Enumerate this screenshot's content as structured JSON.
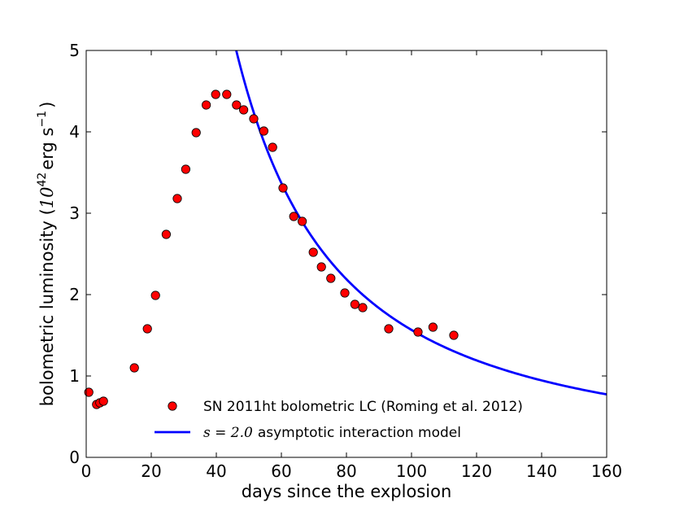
{
  "chart_data": {
    "type": "scatter",
    "xlabel": "days since the explosion",
    "ylabel": {
      "prefix": "bolometric luminosity (",
      "base": "10",
      "exp": "42",
      "unit1": "erg s",
      "unit_exp": "−1",
      "suffix": ")"
    },
    "xlim": [
      0,
      160
    ],
    "ylim": [
      0,
      5
    ],
    "xticks": [
      0,
      20,
      40,
      60,
      80,
      100,
      120,
      140,
      160
    ],
    "yticks": [
      0,
      1,
      2,
      3,
      4,
      5
    ],
    "series": [
      {
        "name": "SN 2011ht bolometric LC (Roming et al. 2012)",
        "kind": "scatter",
        "color": "#ff0000",
        "edge_color": "#000000",
        "points": [
          [
            0.8,
            0.8
          ],
          [
            3.2,
            0.65
          ],
          [
            4.2,
            0.67
          ],
          [
            5.3,
            0.69
          ],
          [
            14.8,
            1.1
          ],
          [
            18.8,
            1.58
          ],
          [
            21.3,
            1.99
          ],
          [
            24.6,
            2.74
          ],
          [
            28.0,
            3.18
          ],
          [
            30.6,
            3.54
          ],
          [
            33.8,
            3.99
          ],
          [
            36.9,
            4.33
          ],
          [
            39.8,
            4.46
          ],
          [
            43.2,
            4.46
          ],
          [
            46.2,
            4.33
          ],
          [
            48.4,
            4.27
          ],
          [
            51.5,
            4.16
          ],
          [
            54.6,
            4.01
          ],
          [
            57.3,
            3.81
          ],
          [
            60.5,
            3.31
          ],
          [
            63.8,
            2.96
          ],
          [
            66.4,
            2.9
          ],
          [
            69.8,
            2.52
          ],
          [
            72.3,
            2.34
          ],
          [
            75.2,
            2.2
          ],
          [
            79.5,
            2.02
          ],
          [
            82.6,
            1.88
          ],
          [
            85.0,
            1.84
          ],
          [
            93.0,
            1.58
          ],
          [
            102.0,
            1.54
          ],
          [
            106.6,
            1.6
          ],
          [
            113.0,
            1.5
          ]
        ]
      },
      {
        "name_math": "s = 2.0",
        "name_rest": "asymptotic interaction model",
        "kind": "line",
        "color": "#0000ff",
        "model": "power_law",
        "formula": "L = 4.43 * (t / 50)^-1.5",
        "amplitude": 4.43,
        "t_ref": 50,
        "exponent": -1.5,
        "t_range": [
          45,
          160
        ]
      }
    ],
    "legend_location": "lower-center",
    "grid": false
  }
}
